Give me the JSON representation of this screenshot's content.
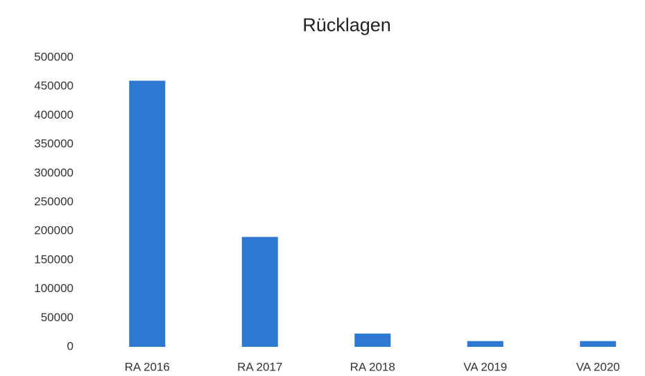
{
  "chart_data": {
    "type": "bar",
    "title": "Rücklagen",
    "categories": [
      "RA 2016",
      "RA 2017",
      "RA 2018",
      "VA 2019",
      "VA 2020"
    ],
    "values": [
      460000,
      190000,
      23000,
      10000,
      10000
    ],
    "color": "#2f78d2",
    "ylim": [
      0,
      500000
    ],
    "yticks": [
      0,
      50000,
      100000,
      150000,
      200000,
      250000,
      300000,
      350000,
      400000,
      450000,
      500000
    ],
    "grid": false
  }
}
